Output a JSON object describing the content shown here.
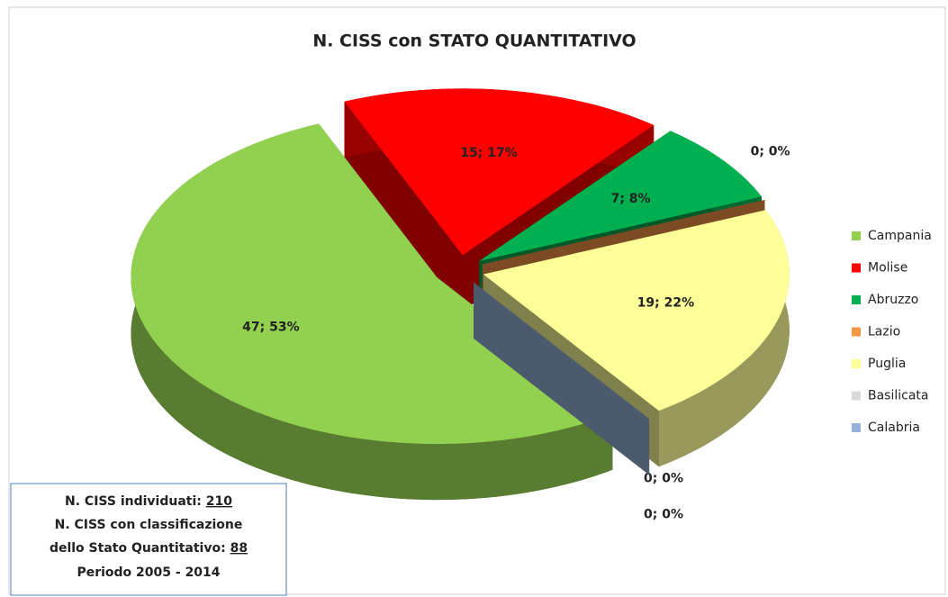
{
  "chart_data": {
    "type": "pie",
    "title": "N. CISS con STATO QUANTITATIVO",
    "categories": [
      "Campania",
      "Molise",
      "Abruzzo",
      "Lazio",
      "Puglia",
      "Basilicata",
      "Calabria"
    ],
    "values": [
      47,
      15,
      7,
      0,
      19,
      0,
      0
    ],
    "value_labels": [
      "47; 53%",
      "15; 17%",
      "7; 8%",
      "0; 0%",
      "19; 22%",
      "0; 0%",
      "0; 0%"
    ],
    "colors": [
      "#92d050",
      "#ff0000",
      "#00b050",
      "#f79646",
      "#ffff99",
      "#d9d9d9",
      "#95b3d7"
    ],
    "legend": "right",
    "info": {
      "count_label": "N. CISS individuati:",
      "count": 210,
      "class_label_1": "N. CISS con classificazione",
      "class_label_2": "dello Stato Quantitativo:",
      "class_count": 88,
      "period": "Periodo 2005 - 2014"
    }
  }
}
